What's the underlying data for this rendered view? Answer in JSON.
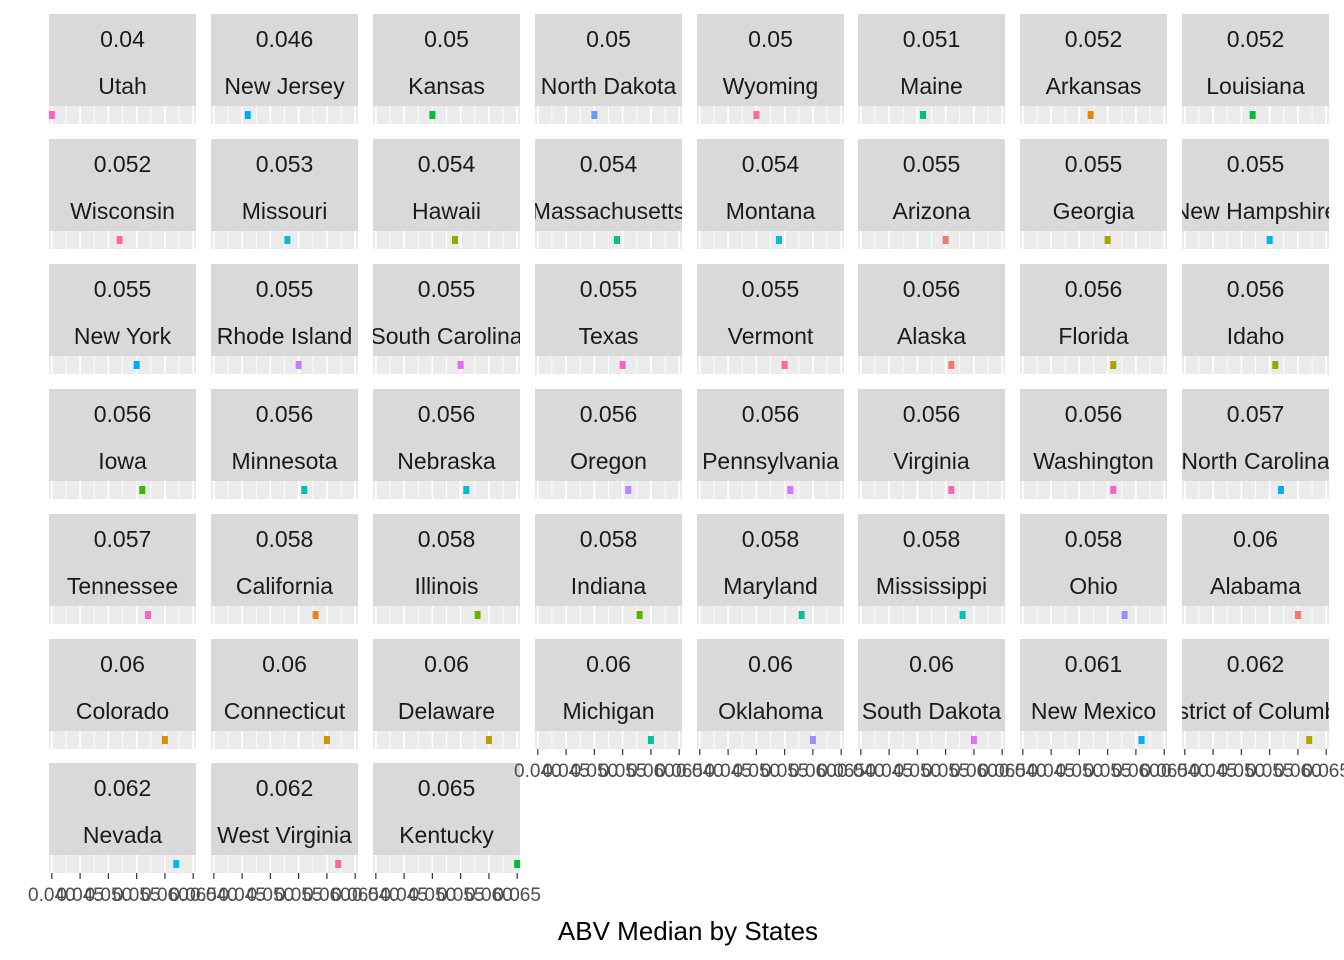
{
  "chart_data": {
    "type": "scatter",
    "facet": "wrap",
    "ncol": 8,
    "xlabel": "ABV Median by States",
    "ylabel": "",
    "xlim": [
      0.0395,
      0.0655
    ],
    "x_ticks": [
      0.04,
      0.045,
      0.05,
      0.055,
      0.06,
      0.065
    ],
    "x_tick_labels": [
      "0.040",
      "0.045",
      "0.050",
      "0.055",
      "0.060",
      "0.065"
    ],
    "grid": true,
    "legend": "none",
    "panels": [
      {
        "label": "0.04",
        "state": "Utah",
        "x": 0.04,
        "color": "#FF61C3"
      },
      {
        "label": "0.046",
        "state": "New Jersey",
        "x": 0.046,
        "color": "#00A9FF"
      },
      {
        "label": "0.05",
        "state": "Kansas",
        "x": 0.05,
        "color": "#00BA38"
      },
      {
        "label": "0.05",
        "state": "North Dakota",
        "x": 0.05,
        "color": "#619CFF"
      },
      {
        "label": "0.05",
        "state": "Wyoming",
        "x": 0.05,
        "color": "#FF6C91"
      },
      {
        "label": "0.051",
        "state": "Maine",
        "x": 0.051,
        "color": "#00BF7D"
      },
      {
        "label": "0.052",
        "state": "Arkansas",
        "x": 0.052,
        "color": "#E58700"
      },
      {
        "label": "0.052",
        "state": "Louisiana",
        "x": 0.052,
        "color": "#00BA38"
      },
      {
        "label": "0.052",
        "state": "Wisconsin",
        "x": 0.052,
        "color": "#FF6C91"
      },
      {
        "label": "0.053",
        "state": "Missouri",
        "x": 0.053,
        "color": "#00BFC4"
      },
      {
        "label": "0.054",
        "state": "Hawaii",
        "x": 0.054,
        "color": "#99A800"
      },
      {
        "label": "0.054",
        "state": "Massachusetts",
        "x": 0.054,
        "color": "#00C08B"
      },
      {
        "label": "0.054",
        "state": "Montana",
        "x": 0.054,
        "color": "#00BCD8"
      },
      {
        "label": "0.055",
        "state": "Arizona",
        "x": 0.055,
        "color": "#F8766D"
      },
      {
        "label": "0.055",
        "state": "Georgia",
        "x": 0.055,
        "color": "#A3A500"
      },
      {
        "label": "0.055",
        "state": "New Hampshire",
        "x": 0.055,
        "color": "#00B4EF"
      },
      {
        "label": "0.055",
        "state": "New York",
        "x": 0.055,
        "color": "#00A9FF"
      },
      {
        "label": "0.055",
        "state": "Rhode Island",
        "x": 0.055,
        "color": "#C77CFF"
      },
      {
        "label": "0.055",
        "state": "South Carolina",
        "x": 0.055,
        "color": "#E76BF3"
      },
      {
        "label": "0.055",
        "state": "Texas",
        "x": 0.055,
        "color": "#FF61C3"
      },
      {
        "label": "0.055",
        "state": "Vermont",
        "x": 0.055,
        "color": "#FF67A4"
      },
      {
        "label": "0.056",
        "state": "Alaska",
        "x": 0.056,
        "color": "#F8766D"
      },
      {
        "label": "0.056",
        "state": "Florida",
        "x": 0.056,
        "color": "#ABA300"
      },
      {
        "label": "0.056",
        "state": "Idaho",
        "x": 0.056,
        "color": "#8EAB00"
      },
      {
        "label": "0.056",
        "state": "Iowa",
        "x": 0.056,
        "color": "#39B600"
      },
      {
        "label": "0.056",
        "state": "Minnesota",
        "x": 0.056,
        "color": "#00BFB0"
      },
      {
        "label": "0.056",
        "state": "Nebraska",
        "x": 0.056,
        "color": "#00BBDB"
      },
      {
        "label": "0.056",
        "state": "Oregon",
        "x": 0.056,
        "color": "#B983FF"
      },
      {
        "label": "0.056",
        "state": "Pennsylvania",
        "x": 0.056,
        "color": "#D078FF"
      },
      {
        "label": "0.056",
        "state": "Virginia",
        "x": 0.056,
        "color": "#FF63B6"
      },
      {
        "label": "0.056",
        "state": "Washington",
        "x": 0.056,
        "color": "#FF62BC"
      },
      {
        "label": "0.057",
        "state": "North Carolina",
        "x": 0.057,
        "color": "#00ADFA"
      },
      {
        "label": "0.057",
        "state": "Tennessee",
        "x": 0.057,
        "color": "#FF61C9"
      },
      {
        "label": "0.058",
        "state": "California",
        "x": 0.058,
        "color": "#E7861B"
      },
      {
        "label": "0.058",
        "state": "Illinois",
        "x": 0.058,
        "color": "#72B000"
      },
      {
        "label": "0.058",
        "state": "Indiana",
        "x": 0.058,
        "color": "#5BB300"
      },
      {
        "label": "0.058",
        "state": "Maryland",
        "x": 0.058,
        "color": "#00C097"
      },
      {
        "label": "0.058",
        "state": "Mississippi",
        "x": 0.058,
        "color": "#00C0B8"
      },
      {
        "label": "0.058",
        "state": "Ohio",
        "x": 0.058,
        "color": "#8F91FF"
      },
      {
        "label": "0.06",
        "state": "Alabama",
        "x": 0.06,
        "color": "#F8766D"
      },
      {
        "label": "0.06",
        "state": "Colorado",
        "x": 0.06,
        "color": "#D89000"
      },
      {
        "label": "0.06",
        "state": "Connecticut",
        "x": 0.06,
        "color": "#C99800"
      },
      {
        "label": "0.06",
        "state": "Delaware",
        "x": 0.06,
        "color": "#BB9D00"
      },
      {
        "label": "0.06",
        "state": "Michigan",
        "x": 0.06,
        "color": "#00C1A3"
      },
      {
        "label": "0.06",
        "state": "Oklahoma",
        "x": 0.06,
        "color": "#A58AFF"
      },
      {
        "label": "0.06",
        "state": "South Dakota",
        "x": 0.06,
        "color": "#E26EF7"
      },
      {
        "label": "0.061",
        "state": "New Mexico",
        "x": 0.061,
        "color": "#00B0F6"
      },
      {
        "label": "0.062",
        "state": "District of Columbia",
        "x": 0.062,
        "color": "#B79F00"
      },
      {
        "label": "0.062",
        "state": "Nevada",
        "x": 0.062,
        "color": "#00B8E7"
      },
      {
        "label": "0.062",
        "state": "West Virginia",
        "x": 0.062,
        "color": "#FF6C91"
      },
      {
        "label": "0.065",
        "state": "Kentucky",
        "x": 0.065,
        "color": "#00BA38"
      }
    ]
  }
}
